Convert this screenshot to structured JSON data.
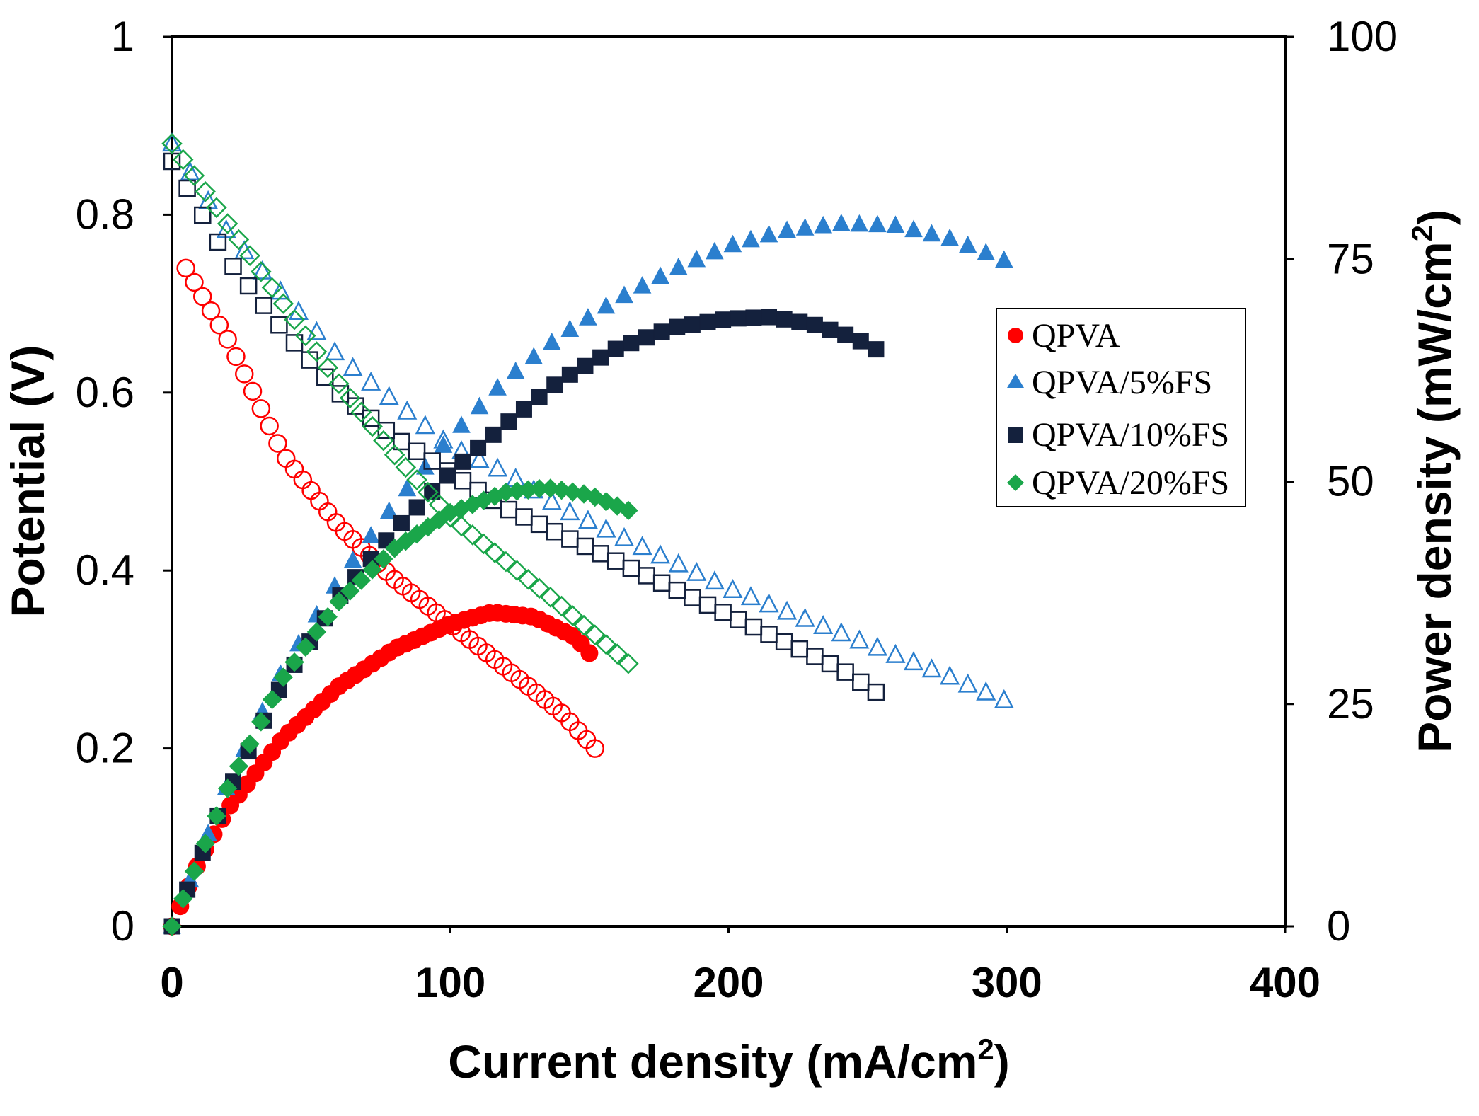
{
  "chart_data": {
    "type": "scatter",
    "title": "",
    "xlabel": "Current density (mA/cm",
    "xlabel_sup": "2",
    "xlabel_end": ")",
    "ylabel_left": "Potential (V)",
    "ylabel_right": "Power density (mW/cm",
    "ylabel_right_sup": "2",
    "ylabel_right_end": ")",
    "xlim": [
      0,
      400
    ],
    "ylim_left": [
      0,
      1
    ],
    "ylim_right": [
      0,
      100
    ],
    "x_ticks": [
      "0",
      "100",
      "200",
      "300",
      "400"
    ],
    "y_left_ticks": [
      "0",
      "0.2",
      "0.4",
      "0.6",
      "0.8",
      "1"
    ],
    "y_right_ticks": [
      "0",
      "25",
      "50",
      "75",
      "100"
    ],
    "legend_position": "right",
    "series": [
      {
        "name": "QPVA",
        "color": "#ff0000",
        "marker": "circle",
        "max_current": 152,
        "step": 3.0,
        "potential_points": [
          [
            5,
            0.74
          ],
          [
            20,
            0.66
          ],
          [
            40,
            0.53
          ],
          [
            60,
            0.45
          ],
          [
            80,
            0.39
          ],
          [
            100,
            0.34
          ],
          [
            120,
            0.29
          ],
          [
            140,
            0.24
          ],
          [
            152,
            0.2
          ]
        ],
        "power_points": [
          [
            0,
            0
          ],
          [
            10,
            7.5
          ],
          [
            20,
            13.2
          ],
          [
            40,
            21.2
          ],
          [
            60,
            27.0
          ],
          [
            80,
            31.2
          ],
          [
            100,
            34.0
          ],
          [
            115,
            35.3
          ],
          [
            130,
            34.8
          ],
          [
            145,
            32.5
          ],
          [
            152,
            30.0
          ]
        ]
      },
      {
        "name": "QPVA/5%FS",
        "color": "#2b7fce",
        "marker": "triangle",
        "max_current": 302,
        "step": 6.5,
        "potential_points": [
          [
            0,
            0.88
          ],
          [
            20,
            0.78
          ],
          [
            40,
            0.71
          ],
          [
            60,
            0.64
          ],
          [
            80,
            0.59
          ],
          [
            100,
            0.54
          ],
          [
            120,
            0.51
          ],
          [
            140,
            0.47
          ],
          [
            160,
            0.44
          ],
          [
            180,
            0.41
          ],
          [
            200,
            0.38
          ],
          [
            220,
            0.355
          ],
          [
            240,
            0.33
          ],
          [
            260,
            0.305
          ],
          [
            280,
            0.28
          ],
          [
            302,
            0.25
          ]
        ],
        "power_points": [
          [
            0,
            0
          ],
          [
            20,
            16
          ],
          [
            40,
            29
          ],
          [
            60,
            39
          ],
          [
            80,
            47.5
          ],
          [
            100,
            55
          ],
          [
            120,
            61.5
          ],
          [
            140,
            66.5
          ],
          [
            160,
            70.5
          ],
          [
            180,
            73.8
          ],
          [
            200,
            76.5
          ],
          [
            220,
            78.2
          ],
          [
            240,
            79
          ],
          [
            260,
            78.8
          ],
          [
            280,
            77.3
          ],
          [
            302,
            74.5
          ]
        ]
      },
      {
        "name": "QPVA/10%FS",
        "color": "#14213d",
        "marker": "square",
        "max_current": 257,
        "step": 5.5,
        "potential_points": [
          [
            0,
            0.86
          ],
          [
            20,
            0.75
          ],
          [
            40,
            0.67
          ],
          [
            60,
            0.6
          ],
          [
            80,
            0.55
          ],
          [
            100,
            0.51
          ],
          [
            120,
            0.47
          ],
          [
            140,
            0.44
          ],
          [
            160,
            0.41
          ],
          [
            180,
            0.38
          ],
          [
            200,
            0.35
          ],
          [
            220,
            0.32
          ],
          [
            240,
            0.29
          ],
          [
            257,
            0.255
          ]
        ],
        "power_points": [
          [
            0,
            0
          ],
          [
            20,
            15
          ],
          [
            40,
            27.5
          ],
          [
            60,
            37
          ],
          [
            80,
            44.5
          ],
          [
            100,
            51
          ],
          [
            120,
            56.5
          ],
          [
            140,
            61.5
          ],
          [
            160,
            65
          ],
          [
            180,
            67.3
          ],
          [
            200,
            68.3
          ],
          [
            215,
            68.5
          ],
          [
            230,
            67.7
          ],
          [
            245,
            66.2
          ],
          [
            257,
            64.2
          ]
        ]
      },
      {
        "name": "QPVA/20%FS",
        "color": "#1aa64a",
        "marker": "diamond",
        "max_current": 166,
        "step": 4.0,
        "potential_points": [
          [
            0,
            0.88
          ],
          [
            20,
            0.79
          ],
          [
            40,
            0.7
          ],
          [
            60,
            0.61
          ],
          [
            80,
            0.53
          ],
          [
            100,
            0.46
          ],
          [
            120,
            0.41
          ],
          [
            140,
            0.36
          ],
          [
            166,
            0.29
          ]
        ],
        "power_points": [
          [
            0,
            0
          ],
          [
            20,
            15.5
          ],
          [
            40,
            28
          ],
          [
            60,
            36.5
          ],
          [
            80,
            42.5
          ],
          [
            100,
            46.5
          ],
          [
            120,
            48.8
          ],
          [
            135,
            49.3
          ],
          [
            150,
            48.5
          ],
          [
            166,
            46.5
          ]
        ]
      }
    ]
  }
}
